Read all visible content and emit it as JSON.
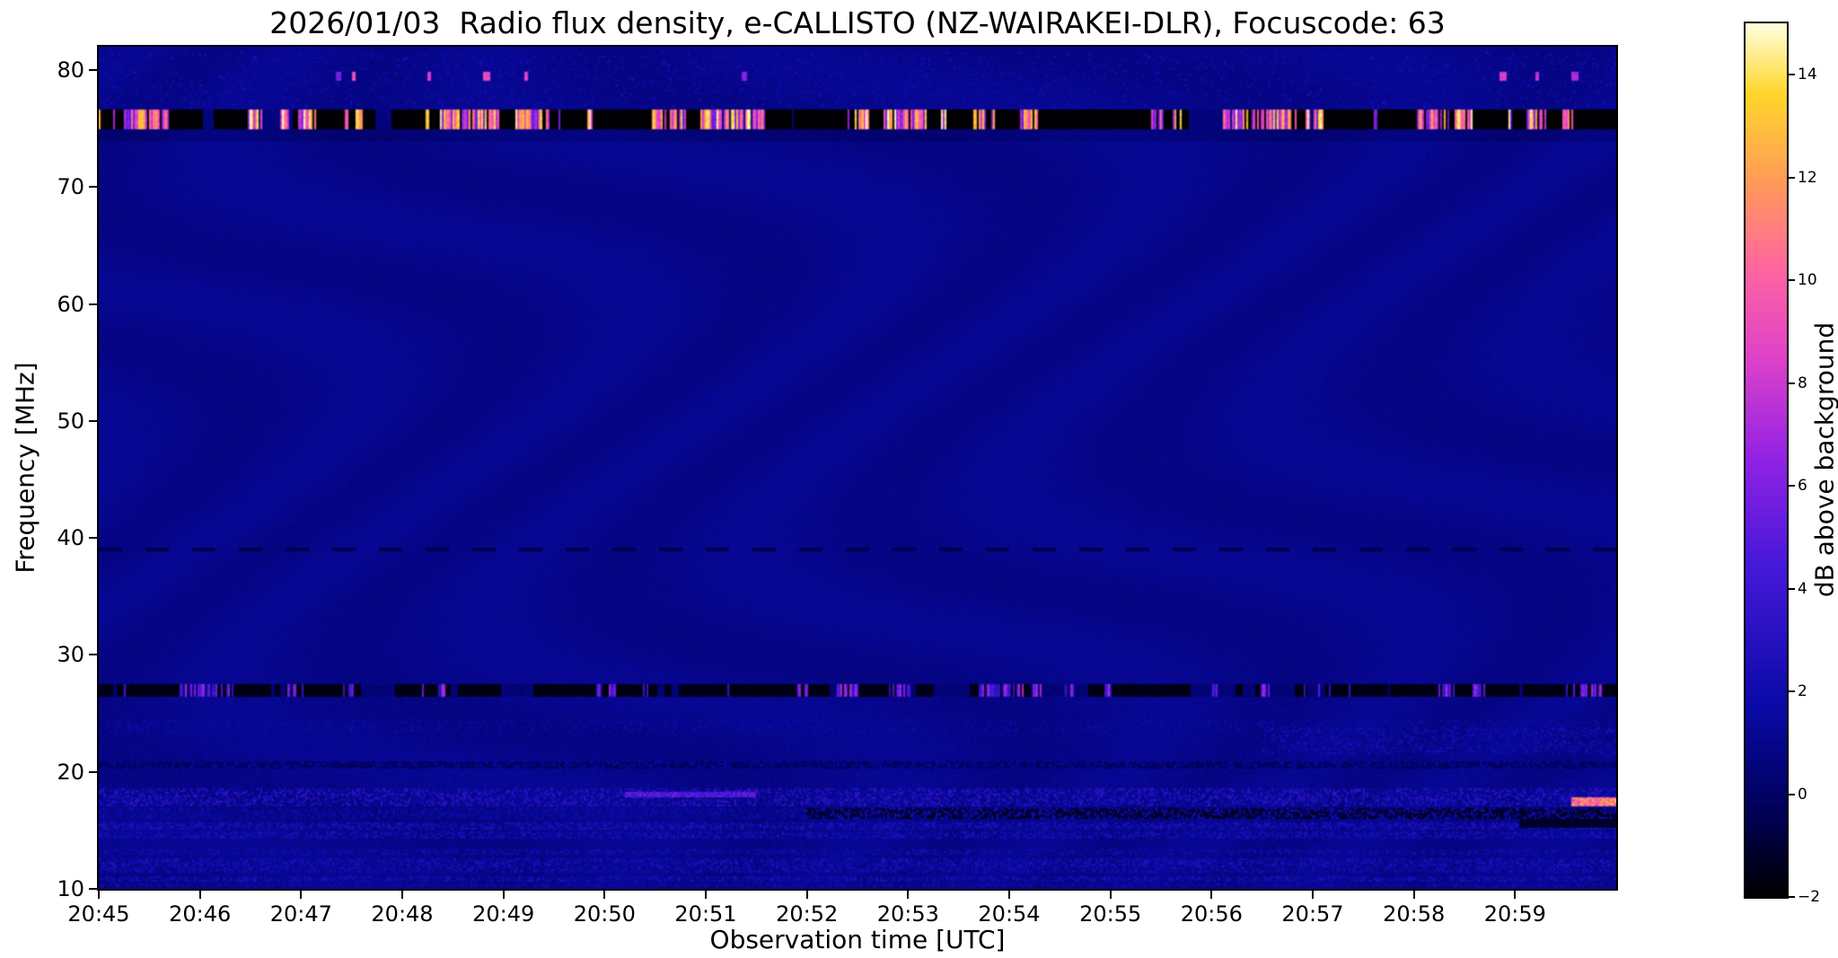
{
  "chart_data": {
    "type": "heatmap",
    "title": "2026/01/03  Radio flux density, e-CALLISTO (NZ-WAIRAKEI-DLR), Focuscode: 63",
    "xlabel": "Observation time [UTC]",
    "ylabel": "Frequency [MHz]",
    "x_ticks": [
      "20:45",
      "20:46",
      "20:47",
      "20:48",
      "20:49",
      "20:50",
      "20:51",
      "20:52",
      "20:53",
      "20:54",
      "20:55",
      "20:56",
      "20:57",
      "20:58",
      "20:59"
    ],
    "x_span_minutes": 15,
    "y_ticks": [
      80,
      70,
      60,
      50,
      40,
      30,
      20,
      10
    ],
    "freq_range": [
      10,
      82
    ],
    "grid": false,
    "legend": "none",
    "background_db": 1.0,
    "colorbar": {
      "label": "dB above background",
      "ticks": [
        14,
        12,
        10,
        8,
        6,
        4,
        2,
        0,
        -2
      ],
      "range": [
        -2,
        15
      ]
    },
    "colormap": {
      "name": "gnuplot2-like",
      "stops": [
        {
          "t": 0.0,
          "color": "#000000"
        },
        {
          "t": 0.1,
          "color": "#00005a"
        },
        {
          "t": 0.22,
          "color": "#0a0aa8"
        },
        {
          "t": 0.38,
          "color": "#4618d8"
        },
        {
          "t": 0.5,
          "color": "#9122e4"
        },
        {
          "t": 0.62,
          "color": "#e042c8"
        },
        {
          "t": 0.72,
          "color": "#ff66a0"
        },
        {
          "t": 0.82,
          "color": "#ff9b57"
        },
        {
          "t": 0.92,
          "color": "#ffd62a"
        },
        {
          "t": 1.0,
          "color": "#ffffdf"
        }
      ]
    },
    "features": [
      {
        "kind": "dark-band",
        "fmin": 73.8,
        "fmax": 75.0,
        "delta_db": -0.5,
        "note": "darker stripe under RFI band"
      },
      {
        "kind": "speckle",
        "fmin": 76.8,
        "fmax": 81.6,
        "db": [
          0.8,
          2.6
        ],
        "density": 0.1,
        "note": "faint blue dashes near top"
      },
      {
        "kind": "dark-dashes",
        "fmin": 38.9,
        "fmax": 39.2,
        "db": -0.6,
        "note": "faint dashed dark line at 39 MHz"
      },
      {
        "kind": "dark-speckle",
        "fmin": 20.25,
        "fmax": 20.95,
        "base_db": -0.2,
        "db": [
          0.2,
          1.6
        ],
        "density": 0.5
      },
      {
        "kind": "speckle",
        "fmin": 23.4,
        "fmax": 24.4,
        "db": [
          0.8,
          2.2
        ],
        "density": 0.2
      },
      {
        "kind": "speckle",
        "fmin": 21.5,
        "fmax": 23.8,
        "tmin": 11.5,
        "tmax": 15,
        "db": [
          1,
          2.8
        ],
        "density": 0.3
      },
      {
        "kind": "speckle",
        "fmin": 17.0,
        "fmax": 18.6,
        "db": [
          0.8,
          3.8
        ],
        "density": 0.55
      },
      {
        "kind": "speckle",
        "fmin": 16.0,
        "fmax": 16.95,
        "tmin": 0,
        "tmax": 7,
        "db": [
          0.5,
          2.5
        ],
        "density": 0.35
      },
      {
        "kind": "dark-speckle",
        "fmin": 16.0,
        "fmax": 16.95,
        "tmin": 7,
        "tmax": 15,
        "base_db": -1.3,
        "db": [
          0.3,
          2.6
        ],
        "density": 0.45
      },
      {
        "kind": "speckle",
        "fmin": 15.05,
        "fmax": 15.65,
        "db": [
          1,
          3.2
        ],
        "density": 0.6
      },
      {
        "kind": "speckle",
        "fmin": 14.35,
        "fmax": 14.95,
        "db": [
          1,
          3.0
        ],
        "density": 0.55
      },
      {
        "kind": "speckle",
        "fmin": 12.85,
        "fmax": 13.35,
        "db": [
          0.8,
          2.6
        ],
        "density": 0.5
      },
      {
        "kind": "speckle",
        "fmin": 12.05,
        "fmax": 12.65,
        "db": [
          0.8,
          3.0
        ],
        "density": 0.6
      },
      {
        "kind": "speckle",
        "fmin": 11.35,
        "fmax": 11.95,
        "db": [
          0.8,
          2.8
        ],
        "density": 0.55
      },
      {
        "kind": "speckle",
        "fmin": 10.6,
        "fmax": 11.15,
        "db": [
          0.8,
          3.0
        ],
        "density": 0.6
      },
      {
        "kind": "speckle",
        "fmin": 10.15,
        "fmax": 10.5,
        "db": [
          0.8,
          2.4
        ],
        "density": 0.45
      },
      {
        "kind": "dark-streak",
        "fmin": 15.25,
        "fmax": 15.95,
        "tmin": 14.05,
        "tmax": 15,
        "base_db": -1.6
      },
      {
        "kind": "burst-band",
        "fmin": 26.45,
        "fmax": 27.55,
        "base_db": -1.6,
        "burst_db": [
          3,
          7.5
        ],
        "cluster": [
          0.05,
          0.14,
          0.55
        ],
        "base_var": [
          0.035,
          0.08,
          0.4
        ],
        "note": "RFI band, black with magenta bursts"
      },
      {
        "kind": "burst-band",
        "fmin": 75.0,
        "fmax": 76.6,
        "base_db": -2,
        "burst_db": [
          5,
          15
        ],
        "cluster": [
          0.06,
          0.1,
          0.85
        ],
        "base_var": [
          0.006,
          0.08,
          0.6
        ],
        "note": "strong RFI band, black with saturated white/yellow bursts"
      },
      {
        "kind": "streak",
        "fmin": 17.9,
        "fmax": 18.35,
        "tmin": 5.2,
        "tmax": 6.5,
        "db": [
          3.5,
          6
        ],
        "note": "magenta streak near 20:50-20:51"
      },
      {
        "kind": "streak",
        "fmin": 17.0,
        "fmax": 17.9,
        "tmin": 14.55,
        "tmax": 15,
        "db": [
          8,
          13
        ],
        "note": "bright orange burst at far right ~17.5 MHz"
      },
      {
        "kind": "dots",
        "fmin": 79.15,
        "fmax": 79.85,
        "times_min": [
          2.35,
          2.5,
          3.25,
          3.8,
          4.2,
          6.35,
          13.85,
          14.2,
          14.55
        ],
        "db": [
          5,
          10
        ],
        "note": "sparse pink dots near 79.5 MHz"
      }
    ]
  }
}
